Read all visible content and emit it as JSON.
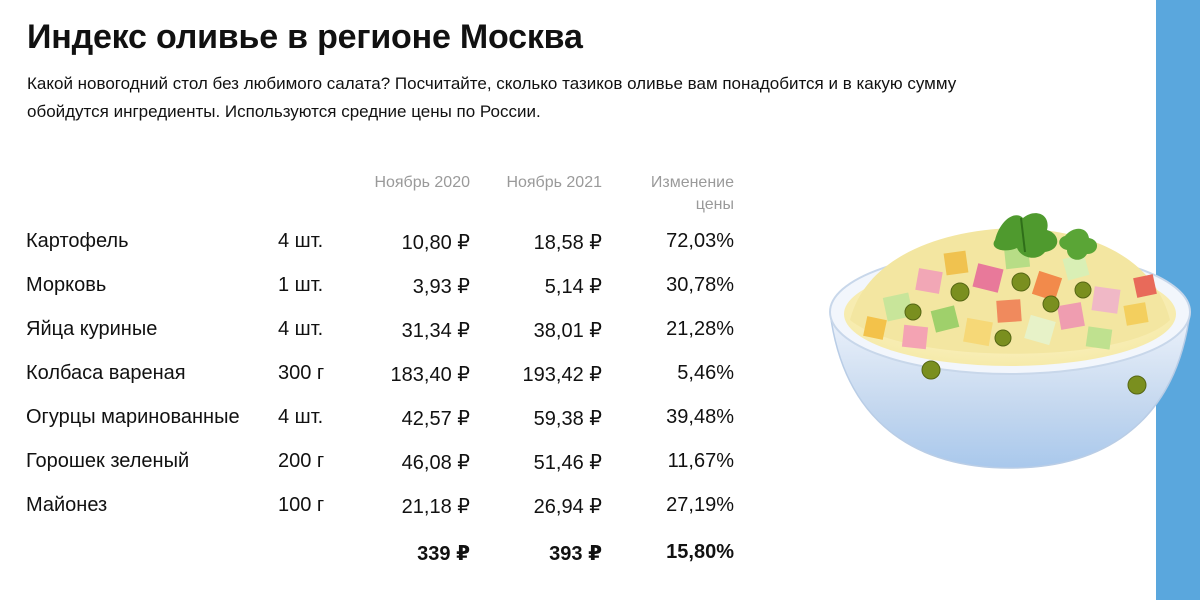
{
  "title": "Индекс оливье в регионе Москва",
  "subtitle": "Какой новогодний стол без любимого салата? Посчитайте, сколько тазиков оливье вам понадобится и в какую сумму обойдутся ингредиенты. Используются средние цены по России.",
  "table": {
    "headers": {
      "nov2020": "Ноябрь 2020",
      "nov2021": "Ноябрь 2021",
      "change_line1": "Изменение",
      "change_line2": "цены"
    },
    "rows": [
      {
        "name": "Картофель",
        "qty": "4 шт.",
        "nov2020": "10,80 ₽",
        "nov2021": "18,58 ₽",
        "change": "72,03%"
      },
      {
        "name": "Морковь",
        "qty": "1 шт.",
        "nov2020": "3,93 ₽",
        "nov2021": "5,14 ₽",
        "change": "30,78%"
      },
      {
        "name": "Яйца куриные",
        "qty": "4 шт.",
        "nov2020": "31,34 ₽",
        "nov2021": "38,01 ₽",
        "change": "21,28%"
      },
      {
        "name": "Колбаса вареная",
        "qty": "300 г",
        "nov2020": "183,40 ₽",
        "nov2021": "193,42 ₽",
        "change": "5,46%"
      },
      {
        "name": "Огурцы маринованные",
        "qty": "4 шт.",
        "nov2020": "42,57 ₽",
        "nov2021": "59,38 ₽",
        "change": "39,48%"
      },
      {
        "name": "Горошек зеленый",
        "qty": "200 г",
        "nov2020": "46,08 ₽",
        "nov2021": "51,46 ₽",
        "change": "11,67%"
      },
      {
        "name": "Майонез",
        "qty": "100 г",
        "nov2020": "21,18 ₽",
        "nov2021": "26,94 ₽",
        "change": "27,19%"
      }
    ],
    "total": {
      "nov2020": "339 ₽",
      "nov2021": "393 ₽",
      "change": "15,80%"
    }
  },
  "colors": {
    "accent_bar": "#5aa7dd",
    "header_text": "#9a9a9a",
    "body_text": "#111111"
  },
  "illustration": "olivier-salad-bowl"
}
